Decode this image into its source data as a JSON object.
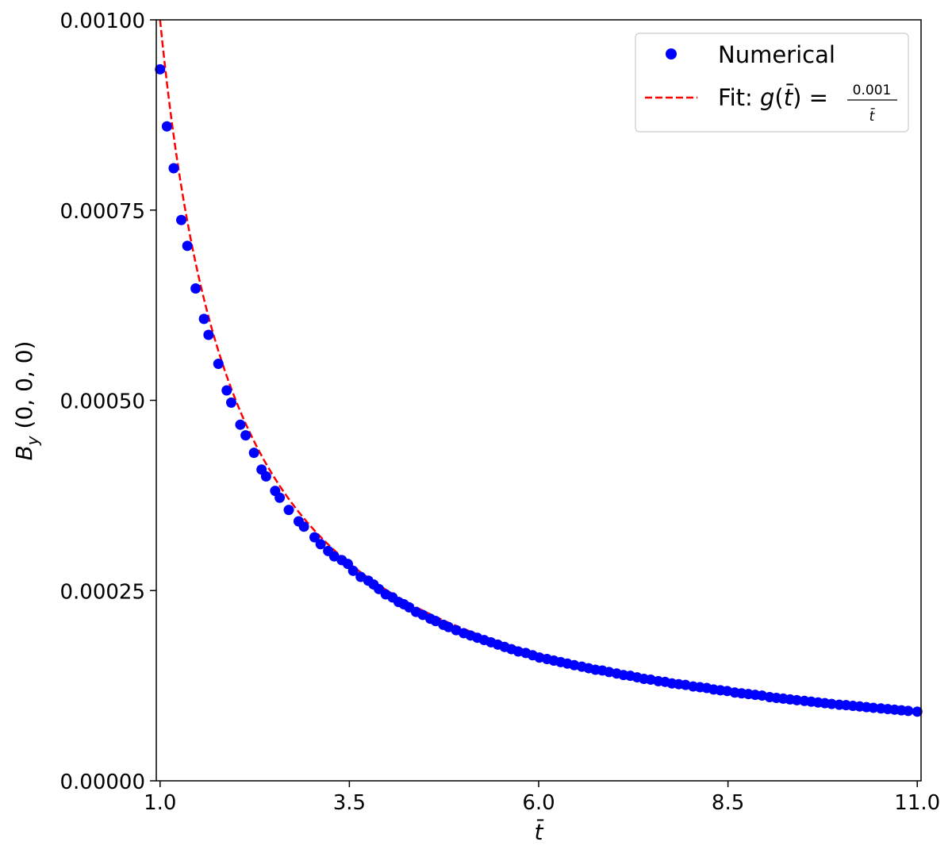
{
  "chart_data": {
    "type": "scatter",
    "title": "",
    "xlabel": "t̄",
    "ylabel": "B_y (0, 0, 0)",
    "ylabel_parts": {
      "main": "B",
      "sub": "y",
      "rest": " (0, 0, 0)"
    },
    "xlim": [
      0.95,
      11.05
    ],
    "ylim": [
      0,
      0.001
    ],
    "xticks": [
      1.0,
      3.5,
      6.0,
      8.5,
      11.0
    ],
    "xtick_labels": [
      "1.0",
      "3.5",
      "6.0",
      "8.5",
      "11.0"
    ],
    "yticks": [
      0,
      0.00025,
      0.0005,
      0.00075,
      0.001
    ],
    "ytick_labels": [
      "0.00000",
      "0.00025",
      "0.00050",
      "0.00075",
      "0.00100"
    ],
    "grid": false,
    "legend": {
      "placement": "top-right",
      "entries": [
        {
          "label": "Numerical",
          "marker": "circle",
          "color": "#0000ff"
        },
        {
          "label_prefix": "Fit: ",
          "label_func": "g",
          "label_arg": "t̄",
          "label_eq": " = ",
          "frac_num": "0.001",
          "frac_den": "t̄",
          "linestyle": "dashed",
          "color": "#ff0000"
        }
      ]
    },
    "series": [
      {
        "name": "Numerical",
        "kind": "scatter",
        "color": "#0000ff",
        "x": [
          1.0,
          1.09,
          1.18,
          1.28,
          1.36,
          1.47,
          1.58,
          1.64,
          1.77,
          1.88,
          1.94,
          2.06,
          2.13,
          2.24,
          2.34,
          2.4,
          2.52,
          2.58,
          2.7,
          2.83,
          2.9,
          3.04,
          3.12,
          3.22,
          3.3,
          3.4,
          3.48,
          3.55,
          3.65,
          3.75,
          3.82,
          3.89,
          3.98,
          4.07,
          4.15,
          4.22,
          4.29,
          4.38,
          4.47,
          4.57,
          4.64,
          4.74,
          4.81,
          4.91,
          5.01,
          5.1,
          5.19,
          5.28,
          5.37,
          5.46,
          5.55,
          5.64,
          5.73,
          5.83,
          5.92,
          6.01,
          6.11,
          6.2,
          6.29,
          6.38,
          6.47,
          6.57,
          6.66,
          6.75,
          6.84,
          6.93,
          7.03,
          7.12,
          7.21,
          7.3,
          7.39,
          7.48,
          7.58,
          7.67,
          7.76,
          7.85,
          7.94,
          8.04,
          8.13,
          8.22,
          8.31,
          8.4,
          8.49,
          8.59,
          8.68,
          8.77,
          8.86,
          8.95,
          9.05,
          9.14,
          9.23,
          9.32,
          9.41,
          9.51,
          9.6,
          9.69,
          9.78,
          9.87,
          9.97,
          10.06,
          10.15,
          10.24,
          10.33,
          10.42,
          10.52,
          10.61,
          10.7,
          10.79,
          10.88,
          11.0
        ],
        "y": [
          0.000935,
          0.00086,
          0.000805,
          0.000737,
          0.000703,
          0.000647,
          0.000607,
          0.000586,
          0.000548,
          0.000513,
          0.000497,
          0.000468,
          0.000454,
          0.000431,
          0.000409,
          0.0004,
          0.000381,
          0.000372,
          0.000356,
          0.000341,
          0.000334,
          0.00032,
          0.000311,
          0.000302,
          0.000295,
          0.00029,
          0.000285,
          0.000276,
          0.000268,
          0.000263,
          0.000258,
          0.000252,
          0.000245,
          0.000241,
          0.000235,
          0.000232,
          0.000228,
          0.000222,
          0.000218,
          0.000213,
          0.00021,
          0.000205,
          0.000202,
          0.000198,
          0.000194,
          0.000191,
          0.000188,
          0.000185,
          0.000182,
          0.000179,
          0.000176,
          0.000173,
          0.00017,
          0.000168,
          0.000165,
          0.000162,
          0.00016,
          0.000158,
          0.000156,
          0.000154,
          0.000152,
          0.00015,
          0.000148,
          0.000146,
          0.000145,
          0.000143,
          0.000141,
          0.000139,
          0.000138,
          0.000136,
          0.000134,
          0.000133,
          0.000131,
          0.00013,
          0.000128,
          0.000127,
          0.000126,
          0.000124,
          0.000123,
          0.000122,
          0.00012,
          0.000119,
          0.000118,
          0.000116,
          0.000115,
          0.000114,
          0.000113,
          0.000112,
          0.00011,
          0.000109,
          0.000108,
          0.000107,
          0.000106,
          0.000105,
          0.000104,
          0.000103,
          0.000102,
          0.000101,
          0.0001,
          9.94e-05,
          9.85e-05,
          9.77e-05,
          9.68e-05,
          9.6e-05,
          9.51e-05,
          9.43e-05,
          9.35e-05,
          9.27e-05,
          9.19e-05,
          9.09e-05
        ]
      },
      {
        "name": "Fit",
        "kind": "line",
        "linestyle": "dashed",
        "color": "#ff0000",
        "function": "0.001 / t",
        "x_start": 1.0,
        "x_end": 11.0
      }
    ]
  }
}
